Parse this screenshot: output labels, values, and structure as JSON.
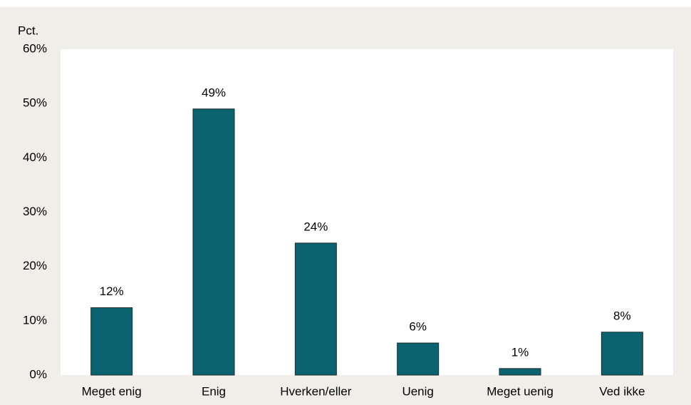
{
  "chart_data": {
    "type": "bar",
    "y_label": "Pct.",
    "categories": [
      "Meget enig",
      "Enig",
      "Hverken/eller",
      "Uenig",
      "Meget uenig",
      "Ved ikke"
    ],
    "values": [
      12.4,
      49,
      24.3,
      5.9,
      1.2,
      7.9
    ],
    "value_labels": [
      "12%",
      "49%",
      "24%",
      "6%",
      "1%",
      "8%"
    ],
    "color": "#0b6370",
    "ylim": [
      0,
      60
    ],
    "yticks": [
      {
        "value": 0,
        "label": "0%"
      },
      {
        "value": 10,
        "label": "10%"
      },
      {
        "value": 20,
        "label": "20%"
      },
      {
        "value": 30,
        "label": "30%"
      },
      {
        "value": 40,
        "label": "40%"
      },
      {
        "value": 50,
        "label": "50%"
      },
      {
        "value": 60,
        "label": "60%"
      }
    ]
  }
}
